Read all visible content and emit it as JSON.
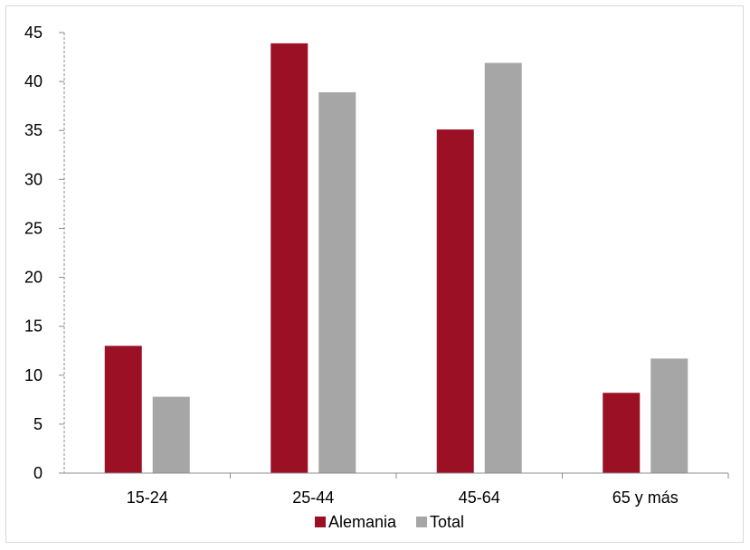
{
  "chart_data": {
    "type": "bar",
    "title": "",
    "xlabel": "",
    "ylabel": "",
    "categories": [
      "15-24",
      "25-44",
      "45-64",
      "65 y más"
    ],
    "series": [
      {
        "name": "Alemania",
        "values": [
          13.0,
          43.9,
          35.1,
          8.2
        ],
        "color": "#9b1025"
      },
      {
        "name": "Total",
        "values": [
          7.8,
          38.9,
          41.9,
          11.7
        ],
        "color": "#a6a6a6"
      }
    ],
    "ylim": [
      0,
      45
    ],
    "yticks": [
      0,
      5,
      10,
      15,
      20,
      25,
      30,
      35,
      40,
      45
    ],
    "grid": false,
    "legend": "bottom"
  }
}
